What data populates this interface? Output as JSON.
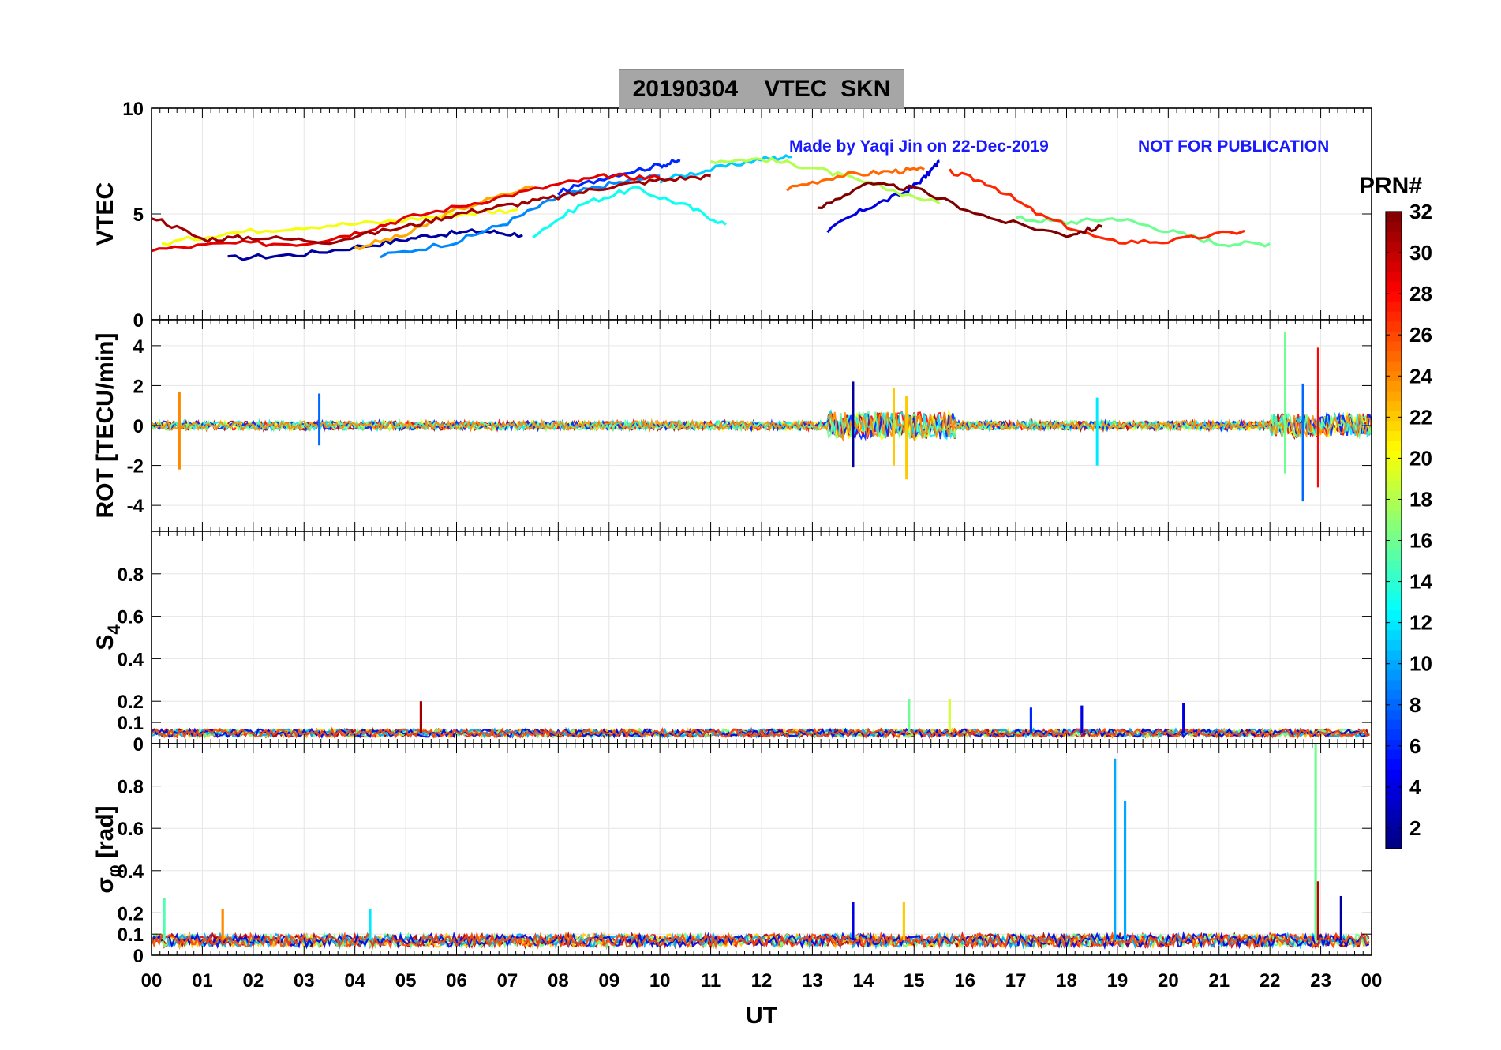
{
  "figure": {
    "title": "20190304    VTEC  SKN",
    "watermark_left": "Made by Yaqi Jin on 22-Dec-2019",
    "watermark_right": "NOT FOR PUBLICATION",
    "colors": {
      "watermark": "#1a1aff",
      "grid": "#e6e6e6",
      "title_box": "#a6a6a6"
    }
  },
  "chart_data": [
    {
      "type": "line",
      "panel": "vtec",
      "ylabel": "VTEC",
      "ylim": [
        0,
        10
      ],
      "yticks": [
        "0",
        "5",
        "10"
      ],
      "ytick_values": [
        0,
        5,
        10
      ],
      "xlim": [
        0,
        24
      ],
      "series_note": "multi-satellite VTEC arcs, coloured by PRN",
      "series": [
        {
          "prn": 2,
          "x": [
            1.5,
            3,
            4.5,
            5.5,
            6.5,
            7.3
          ],
          "y": [
            2.9,
            3.1,
            3.6,
            4.0,
            4.2,
            4.0
          ]
        },
        {
          "prn": 4,
          "x": [
            13.3,
            14,
            14.8,
            15.2,
            15.5
          ],
          "y": [
            4.2,
            5.2,
            6.0,
            6.7,
            7.5
          ]
        },
        {
          "prn": 6,
          "x": [
            8,
            9,
            10,
            10.4
          ],
          "y": [
            6.0,
            6.8,
            7.3,
            7.5
          ]
        },
        {
          "prn": 9,
          "x": [
            4.5,
            6,
            7,
            8,
            9,
            10
          ],
          "y": [
            3.0,
            3.7,
            4.6,
            5.8,
            6.4,
            6.8
          ]
        },
        {
          "prn": 11,
          "x": [
            10,
            11,
            12,
            12.6
          ],
          "y": [
            6.6,
            7.1,
            7.6,
            7.7
          ]
        },
        {
          "prn": 13,
          "x": [
            7.5,
            8.5,
            9.5,
            10.5,
            11.3
          ],
          "y": [
            4.0,
            5.5,
            6.2,
            5.4,
            4.5
          ]
        },
        {
          "prn": 16,
          "x": [
            17,
            18,
            19,
            20,
            21,
            22
          ],
          "y": [
            4.8,
            4.6,
            4.8,
            4.2,
            3.6,
            3.6
          ]
        },
        {
          "prn": 18,
          "x": [
            11,
            12,
            13,
            14,
            15.5
          ],
          "y": [
            7.5,
            7.6,
            7.2,
            6.5,
            5.5
          ]
        },
        {
          "prn": 20,
          "x": [
            0.2,
            1.5,
            3,
            4.5,
            6,
            7.2
          ],
          "y": [
            3.6,
            4.1,
            4.4,
            4.6,
            5.0,
            5.2
          ]
        },
        {
          "prn": 23,
          "x": [
            4,
            5,
            6,
            7.5
          ],
          "y": [
            3.4,
            4.0,
            5.2,
            6.3
          ]
        },
        {
          "prn": 25,
          "x": [
            12.5,
            13.5,
            14.5,
            15.2
          ],
          "y": [
            6.2,
            6.8,
            7.0,
            7.1
          ]
        },
        {
          "prn": 27,
          "x": [
            15.7,
            16.5,
            17.5,
            18.8,
            20,
            21.5
          ],
          "y": [
            7.0,
            6.4,
            4.9,
            3.7,
            3.7,
            4.2
          ]
        },
        {
          "prn": 29,
          "x": [
            0,
            1.5,
            3,
            4,
            5,
            6.5,
            8,
            9,
            10
          ],
          "y": [
            3.3,
            3.6,
            3.6,
            4.1,
            4.8,
            5.6,
            6.4,
            6.8,
            6.7
          ]
        },
        {
          "prn": 31,
          "x": [
            0,
            1,
            2,
            3.5,
            5,
            6,
            7,
            8,
            9,
            10,
            11
          ],
          "y": [
            4.9,
            3.8,
            3.9,
            3.7,
            4.4,
            5.0,
            5.4,
            5.8,
            6.3,
            6.6,
            6.8
          ]
        },
        {
          "prn": 32,
          "x": [
            13.1,
            14,
            15,
            16.5,
            18,
            18.7
          ],
          "y": [
            5.2,
            6.4,
            6.2,
            4.8,
            4.0,
            4.4
          ]
        }
      ]
    },
    {
      "type": "line",
      "panel": "rot",
      "ylabel": "ROT [TECU/min]",
      "ylim": [
        -5.3,
        5.3
      ],
      "yticks": [
        "-4",
        "-2",
        "0",
        "2",
        "4"
      ],
      "ytick_values": [
        -4,
        -2,
        0,
        2,
        4
      ],
      "xlim": [
        0,
        24
      ],
      "spikes": [
        {
          "x": 0.55,
          "min": -2.2,
          "max": 1.7,
          "prn": 24
        },
        {
          "x": 3.3,
          "min": -1.0,
          "max": 1.6,
          "prn": 8
        },
        {
          "x": 13.8,
          "min": -2.1,
          "max": 2.2,
          "prn": 2
        },
        {
          "x": 14.6,
          "min": -2.0,
          "max": 1.9,
          "prn": 22
        },
        {
          "x": 14.85,
          "min": -2.7,
          "max": 1.5,
          "prn": 22
        },
        {
          "x": 18.6,
          "min": -2.0,
          "max": 1.4,
          "prn": 12
        },
        {
          "x": 22.3,
          "min": -2.4,
          "max": 4.7,
          "prn": 16
        },
        {
          "x": 22.65,
          "min": -3.8,
          "max": 2.1,
          "prn": 8
        },
        {
          "x": 22.95,
          "min": -3.1,
          "max": 3.9,
          "prn": 28
        }
      ]
    },
    {
      "type": "line",
      "panel": "s4",
      "ylabel": "S",
      "ylabel_sub": "4",
      "ylim": [
        0,
        1
      ],
      "yticks": [
        "0",
        "0.1",
        "0.2",
        "0.4",
        "0.6",
        "0.8"
      ],
      "ytick_values": [
        0,
        0.1,
        0.2,
        0.4,
        0.6,
        0.8
      ],
      "xlim": [
        0,
        24
      ],
      "spikes": [
        {
          "x": 5.3,
          "y": 0.2,
          "prn": 31
        },
        {
          "x": 14.9,
          "y": 0.21,
          "prn": 16
        },
        {
          "x": 15.7,
          "y": 0.21,
          "prn": 19
        },
        {
          "x": 17.3,
          "y": 0.17,
          "prn": 6
        },
        {
          "x": 18.3,
          "y": 0.18,
          "prn": 4
        },
        {
          "x": 20.3,
          "y": 0.19,
          "prn": 4
        }
      ]
    },
    {
      "type": "line",
      "panel": "sigma_phi",
      "ylabel": "σ",
      "ylabel_sub": "φ",
      "ylabel_unit": " [rad]",
      "ylim": [
        0,
        1
      ],
      "yticks": [
        "0",
        "0.1",
        "0.2",
        "0.4",
        "0.6",
        "0.8"
      ],
      "ytick_values": [
        0,
        0.1,
        0.2,
        0.4,
        0.6,
        0.8
      ],
      "xlim": [
        0,
        24
      ],
      "spikes": [
        {
          "x": 0.25,
          "y": 0.27,
          "prn": 15
        },
        {
          "x": 1.4,
          "y": 0.22,
          "prn": 24
        },
        {
          "x": 4.3,
          "y": 0.22,
          "prn": 12
        },
        {
          "x": 13.8,
          "y": 0.25,
          "prn": 4
        },
        {
          "x": 14.8,
          "y": 0.25,
          "prn": 22
        },
        {
          "x": 18.95,
          "y": 0.93,
          "prn": 10
        },
        {
          "x": 19.15,
          "y": 0.73,
          "prn": 10
        },
        {
          "x": 22.9,
          "y": 1.0,
          "prn": 16
        },
        {
          "x": 22.95,
          "y": 0.35,
          "prn": 30
        },
        {
          "x": 23.4,
          "y": 0.28,
          "prn": 2
        }
      ]
    }
  ],
  "x_axis": {
    "label": "UT",
    "ticks": [
      "00",
      "01",
      "02",
      "03",
      "04",
      "05",
      "06",
      "07",
      "08",
      "09",
      "10",
      "11",
      "12",
      "13",
      "14",
      "15",
      "16",
      "17",
      "18",
      "19",
      "20",
      "21",
      "22",
      "23",
      "00"
    ],
    "range": [
      0,
      24
    ]
  },
  "colorbar": {
    "label": "PRN#",
    "range": [
      1,
      32
    ],
    "ticks": [
      "2",
      "4",
      "6",
      "8",
      "10",
      "12",
      "14",
      "16",
      "18",
      "20",
      "22",
      "24",
      "26",
      "28",
      "30",
      "32"
    ],
    "tick_values": [
      2,
      4,
      6,
      8,
      10,
      12,
      14,
      16,
      18,
      20,
      22,
      24,
      26,
      28,
      30,
      32
    ],
    "colormap": "jet"
  }
}
